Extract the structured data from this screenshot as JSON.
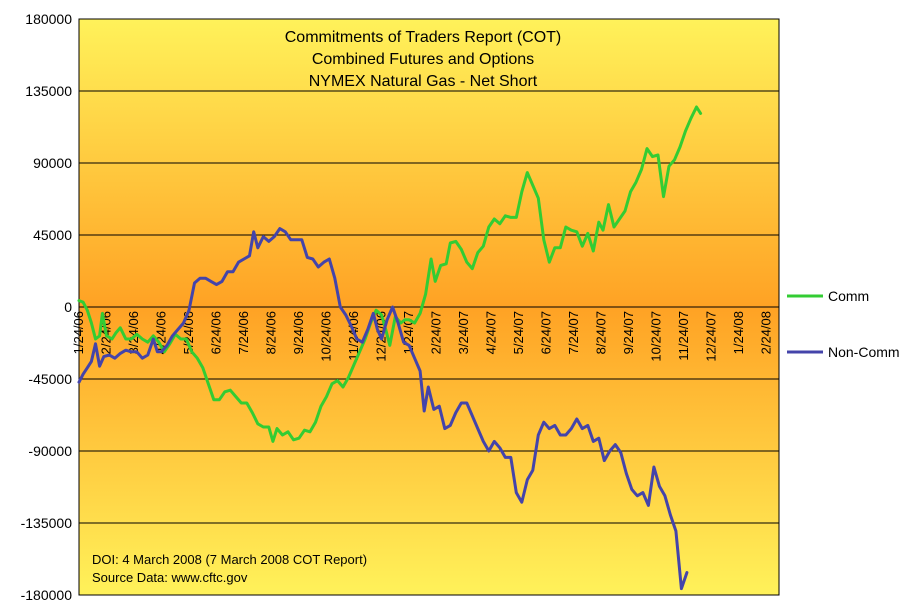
{
  "chart_data": {
    "type": "line",
    "title_lines": [
      "Commitments of Traders Report (COT)",
      "Combined Futures and Options",
      "NYMEX Natural Gas - Net Short"
    ],
    "xlabel": "",
    "ylabel": "",
    "ylim": [
      -180000,
      180000
    ],
    "y_ticks": [
      180000,
      135000,
      90000,
      45000,
      0,
      -45000,
      -90000,
      -135000,
      -180000
    ],
    "y_tick_labels": [
      "180000",
      "135000",
      "90000",
      "45000",
      "0",
      "-45000",
      "-90000",
      "-135000",
      "-180000"
    ],
    "x_tick_labels": [
      "1/24/06",
      "2/24/06",
      "3/24/06",
      "4/24/06",
      "5/24/06",
      "6/24/06",
      "7/24/06",
      "8/24/06",
      "9/24/06",
      "10/24/06",
      "11/24/06",
      "12/24/06",
      "1/24/07",
      "2/24/07",
      "3/24/07",
      "4/24/07",
      "5/24/07",
      "6/24/07",
      "7/24/07",
      "8/24/07",
      "9/24/07",
      "10/24/07",
      "11/24/07",
      "12/24/07",
      "1/24/08",
      "2/24/08"
    ],
    "x_range": [
      0,
      25.45
    ],
    "grid": "horizontal",
    "legend_position": "right",
    "annotation_lines": [
      "DOI: 4 March 2008 (7 March 2008 COT Report)",
      "Source Data: www.cftc.gov"
    ],
    "series": [
      {
        "name": "Comm",
        "color": "#33cc33",
        "points": [
          [
            0.0,
            4000
          ],
          [
            0.15,
            3000
          ],
          [
            0.3,
            -2000
          ],
          [
            0.45,
            -10000
          ],
          [
            0.6,
            -20000
          ],
          [
            0.75,
            -18000
          ],
          [
            0.85,
            -4000
          ],
          [
            1.0,
            -18000
          ],
          [
            1.2,
            -20000
          ],
          [
            1.35,
            -16000
          ],
          [
            1.5,
            -13000
          ],
          [
            1.7,
            -20000
          ],
          [
            1.9,
            -20000
          ],
          [
            2.1,
            -17000
          ],
          [
            2.3,
            -20000
          ],
          [
            2.5,
            -22000
          ],
          [
            2.7,
            -18000
          ],
          [
            2.9,
            -22000
          ],
          [
            3.1,
            -28000
          ],
          [
            3.3,
            -23000
          ],
          [
            3.5,
            -17000
          ],
          [
            3.7,
            -20000
          ],
          [
            3.9,
            -20000
          ],
          [
            4.1,
            -28000
          ],
          [
            4.3,
            -32000
          ],
          [
            4.5,
            -38000
          ],
          [
            4.7,
            -48000
          ],
          [
            4.9,
            -58000
          ],
          [
            5.1,
            -58000
          ],
          [
            5.3,
            -53000
          ],
          [
            5.5,
            -52000
          ],
          [
            5.7,
            -56000
          ],
          [
            5.9,
            -60000
          ],
          [
            6.1,
            -60000
          ],
          [
            6.3,
            -66000
          ],
          [
            6.5,
            -73000
          ],
          [
            6.7,
            -75000
          ],
          [
            6.9,
            -75000
          ],
          [
            7.05,
            -84000
          ],
          [
            7.2,
            -76000
          ],
          [
            7.4,
            -80000
          ],
          [
            7.6,
            -78000
          ],
          [
            7.8,
            -83000
          ],
          [
            8.0,
            -82000
          ],
          [
            8.2,
            -77000
          ],
          [
            8.4,
            -78000
          ],
          [
            8.6,
            -72000
          ],
          [
            8.8,
            -62000
          ],
          [
            9.0,
            -56000
          ],
          [
            9.2,
            -48000
          ],
          [
            9.4,
            -46000
          ],
          [
            9.6,
            -50000
          ],
          [
            9.8,
            -44000
          ],
          [
            10.0,
            -36000
          ],
          [
            10.2,
            -28000
          ],
          [
            10.4,
            -20000
          ],
          [
            10.6,
            -10000
          ],
          [
            10.8,
            -2000
          ],
          [
            11.0,
            -5000
          ],
          [
            11.15,
            -14000
          ],
          [
            11.3,
            -24000
          ],
          [
            11.5,
            -6000
          ],
          [
            11.7,
            -10000
          ],
          [
            11.85,
            -8000
          ],
          [
            12.0,
            -8000
          ],
          [
            12.2,
            -10000
          ],
          [
            12.4,
            -4000
          ],
          [
            12.6,
            8000
          ],
          [
            12.8,
            30000
          ],
          [
            12.95,
            16000
          ],
          [
            13.15,
            26000
          ],
          [
            13.35,
            27000
          ],
          [
            13.5,
            40000
          ],
          [
            13.7,
            41000
          ],
          [
            13.9,
            36000
          ],
          [
            14.1,
            28000
          ],
          [
            14.3,
            24000
          ],
          [
            14.5,
            34000
          ],
          [
            14.7,
            38000
          ],
          [
            14.9,
            50000
          ],
          [
            15.1,
            55000
          ],
          [
            15.3,
            52000
          ],
          [
            15.5,
            57000
          ],
          [
            15.7,
            56000
          ],
          [
            15.9,
            56000
          ],
          [
            16.1,
            72000
          ],
          [
            16.3,
            84000
          ],
          [
            16.5,
            76000
          ],
          [
            16.7,
            68000
          ],
          [
            16.9,
            42000
          ],
          [
            17.1,
            28000
          ],
          [
            17.3,
            37000
          ],
          [
            17.5,
            37000
          ],
          [
            17.7,
            50000
          ],
          [
            17.9,
            48000
          ],
          [
            18.1,
            47000
          ],
          [
            18.3,
            38000
          ],
          [
            18.5,
            46000
          ],
          [
            18.7,
            35000
          ],
          [
            18.9,
            53000
          ],
          [
            19.05,
            48000
          ],
          [
            19.25,
            64000
          ],
          [
            19.45,
            50000
          ],
          [
            19.65,
            55000
          ],
          [
            19.85,
            60000
          ],
          [
            20.05,
            72000
          ],
          [
            20.25,
            78000
          ],
          [
            20.45,
            86000
          ],
          [
            20.65,
            99000
          ],
          [
            20.85,
            94000
          ],
          [
            21.05,
            95000
          ],
          [
            21.25,
            69000
          ],
          [
            21.45,
            88000
          ],
          [
            21.65,
            92000
          ],
          [
            21.85,
            100000
          ],
          [
            22.05,
            110000
          ],
          [
            22.25,
            118000
          ],
          [
            22.45,
            125000
          ],
          [
            22.6,
            121000
          ]
        ]
      },
      {
        "name": "Non-Comm",
        "color": "#4444aa",
        "points": [
          [
            0.0,
            -47000
          ],
          [
            0.15,
            -42000
          ],
          [
            0.3,
            -38000
          ],
          [
            0.45,
            -34000
          ],
          [
            0.6,
            -23000
          ],
          [
            0.75,
            -37000
          ],
          [
            0.9,
            -31000
          ],
          [
            1.1,
            -30000
          ],
          [
            1.3,
            -32000
          ],
          [
            1.5,
            -29000
          ],
          [
            1.7,
            -27000
          ],
          [
            1.9,
            -28000
          ],
          [
            2.1,
            -28000
          ],
          [
            2.3,
            -32000
          ],
          [
            2.5,
            -30000
          ],
          [
            2.7,
            -20000
          ],
          [
            2.85,
            -28000
          ],
          [
            3.0,
            -28000
          ],
          [
            3.2,
            -24000
          ],
          [
            3.4,
            -18000
          ],
          [
            3.6,
            -14000
          ],
          [
            3.8,
            -10000
          ],
          [
            4.0,
            -2000
          ],
          [
            4.2,
            15000
          ],
          [
            4.4,
            18000
          ],
          [
            4.6,
            18000
          ],
          [
            4.8,
            16000
          ],
          [
            5.0,
            14000
          ],
          [
            5.2,
            16000
          ],
          [
            5.4,
            22000
          ],
          [
            5.6,
            22000
          ],
          [
            5.8,
            28000
          ],
          [
            6.0,
            30000
          ],
          [
            6.2,
            32000
          ],
          [
            6.35,
            47000
          ],
          [
            6.5,
            37000
          ],
          [
            6.7,
            44000
          ],
          [
            6.9,
            41000
          ],
          [
            7.1,
            44000
          ],
          [
            7.3,
            49000
          ],
          [
            7.5,
            47000
          ],
          [
            7.7,
            42000
          ],
          [
            7.9,
            42000
          ],
          [
            8.1,
            42000
          ],
          [
            8.3,
            31000
          ],
          [
            8.5,
            30000
          ],
          [
            8.7,
            25000
          ],
          [
            8.9,
            28000
          ],
          [
            9.1,
            30000
          ],
          [
            9.3,
            18000
          ],
          [
            9.5,
            0
          ],
          [
            9.7,
            -5000
          ],
          [
            9.9,
            -12000
          ],
          [
            10.1,
            -20000
          ],
          [
            10.3,
            -22000
          ],
          [
            10.5,
            -14000
          ],
          [
            10.7,
            -4000
          ],
          [
            10.85,
            -14000
          ],
          [
            11.0,
            -20000
          ],
          [
            11.2,
            -8000
          ],
          [
            11.4,
            0
          ],
          [
            11.6,
            -10000
          ],
          [
            11.8,
            -22000
          ],
          [
            12.0,
            -24000
          ],
          [
            12.2,
            -32000
          ],
          [
            12.4,
            -40000
          ],
          [
            12.55,
            -65000
          ],
          [
            12.7,
            -50000
          ],
          [
            12.9,
            -64000
          ],
          [
            13.1,
            -62000
          ],
          [
            13.3,
            -76000
          ],
          [
            13.5,
            -74000
          ],
          [
            13.7,
            -66000
          ],
          [
            13.9,
            -60000
          ],
          [
            14.1,
            -60000
          ],
          [
            14.3,
            -68000
          ],
          [
            14.5,
            -76000
          ],
          [
            14.7,
            -84000
          ],
          [
            14.9,
            -90000
          ],
          [
            15.1,
            -84000
          ],
          [
            15.3,
            -88000
          ],
          [
            15.5,
            -94000
          ],
          [
            15.7,
            -94000
          ],
          [
            15.9,
            -116000
          ],
          [
            16.1,
            -122000
          ],
          [
            16.3,
            -108000
          ],
          [
            16.5,
            -102000
          ],
          [
            16.7,
            -80000
          ],
          [
            16.9,
            -72000
          ],
          [
            17.1,
            -76000
          ],
          [
            17.3,
            -74000
          ],
          [
            17.5,
            -80000
          ],
          [
            17.7,
            -80000
          ],
          [
            17.9,
            -76000
          ],
          [
            18.1,
            -70000
          ],
          [
            18.3,
            -76000
          ],
          [
            18.5,
            -74000
          ],
          [
            18.7,
            -84000
          ],
          [
            18.9,
            -82000
          ],
          [
            19.1,
            -96000
          ],
          [
            19.3,
            -90000
          ],
          [
            19.5,
            -86000
          ],
          [
            19.7,
            -91000
          ],
          [
            19.9,
            -104000
          ],
          [
            20.1,
            -114000
          ],
          [
            20.3,
            -118000
          ],
          [
            20.5,
            -116000
          ],
          [
            20.7,
            -124000
          ],
          [
            20.9,
            -100000
          ],
          [
            21.1,
            -112000
          ],
          [
            21.3,
            -118000
          ],
          [
            21.5,
            -130000
          ],
          [
            21.7,
            -140000
          ],
          [
            21.9,
            -176000
          ],
          [
            22.1,
            -166000
          ]
        ]
      }
    ]
  }
}
